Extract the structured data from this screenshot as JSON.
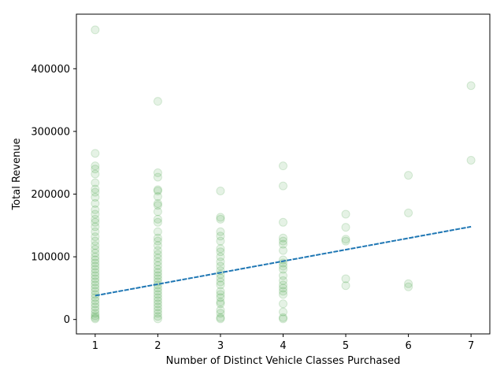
{
  "chart_data": {
    "type": "scatter",
    "title": "",
    "xlabel": "Number of Distinct Vehicle Classes Purchased",
    "ylabel": "Total Revenue",
    "xlim": [
      0.7,
      7.3
    ],
    "ylim": [
      -23000,
      487000
    ],
    "xticks": [
      1,
      2,
      3,
      4,
      5,
      6,
      7
    ],
    "yticks": [
      0,
      100000,
      200000,
      300000,
      400000
    ],
    "grid": false,
    "point_color": "#008000",
    "point_opacity": 0.1,
    "line_color": "#1f77b4",
    "trendline": {
      "x": [
        1,
        7
      ],
      "y": [
        38000,
        148000
      ]
    },
    "series": [
      {
        "points": [
          [
            1,
            462000
          ],
          [
            1,
            265000
          ],
          [
            1,
            245000
          ],
          [
            1,
            240000
          ],
          [
            1,
            232000
          ],
          [
            1,
            218000
          ],
          [
            1,
            208000
          ],
          [
            1,
            203000
          ],
          [
            1,
            195000
          ],
          [
            1,
            185000
          ],
          [
            1,
            175000
          ],
          [
            1,
            168000
          ],
          [
            1,
            160000
          ],
          [
            1,
            155000
          ],
          [
            1,
            148000
          ],
          [
            1,
            140000
          ],
          [
            1,
            132000
          ],
          [
            1,
            125000
          ],
          [
            1,
            118000
          ],
          [
            1,
            112000
          ],
          [
            1,
            106000
          ],
          [
            1,
            100000
          ],
          [
            1,
            95000
          ],
          [
            1,
            90000
          ],
          [
            1,
            85000
          ],
          [
            1,
            80000
          ],
          [
            1,
            75000
          ],
          [
            1,
            70000
          ],
          [
            1,
            65000
          ],
          [
            1,
            60000
          ],
          [
            1,
            55000
          ],
          [
            1,
            50000
          ],
          [
            1,
            45000
          ],
          [
            1,
            40000
          ],
          [
            1,
            35000
          ],
          [
            1,
            30000
          ],
          [
            1,
            25000
          ],
          [
            1,
            20000
          ],
          [
            1,
            15000
          ],
          [
            1,
            10000
          ],
          [
            1,
            6000
          ],
          [
            1,
            3000
          ],
          [
            1,
            1000
          ],
          [
            2,
            348000
          ],
          [
            2,
            234000
          ],
          [
            2,
            227000
          ],
          [
            2,
            207000
          ],
          [
            2,
            205000
          ],
          [
            2,
            196000
          ],
          [
            2,
            185000
          ],
          [
            2,
            182000
          ],
          [
            2,
            172000
          ],
          [
            2,
            160000
          ],
          [
            2,
            155000
          ],
          [
            2,
            140000
          ],
          [
            2,
            130000
          ],
          [
            2,
            125000
          ],
          [
            2,
            118000
          ],
          [
            2,
            110000
          ],
          [
            2,
            104000
          ],
          [
            2,
            98000
          ],
          [
            2,
            92000
          ],
          [
            2,
            86000
          ],
          [
            2,
            80000
          ],
          [
            2,
            75000
          ],
          [
            2,
            70000
          ],
          [
            2,
            65000
          ],
          [
            2,
            60000
          ],
          [
            2,
            55000
          ],
          [
            2,
            50000
          ],
          [
            2,
            45000
          ],
          [
            2,
            40000
          ],
          [
            2,
            35000
          ],
          [
            2,
            30000
          ],
          [
            2,
            25000
          ],
          [
            2,
            20000
          ],
          [
            2,
            15000
          ],
          [
            2,
            10000
          ],
          [
            2,
            5000
          ],
          [
            2,
            1000
          ],
          [
            3,
            205000
          ],
          [
            3,
            163000
          ],
          [
            3,
            160000
          ],
          [
            3,
            140000
          ],
          [
            3,
            133000
          ],
          [
            3,
            125000
          ],
          [
            3,
            113000
          ],
          [
            3,
            108000
          ],
          [
            3,
            100000
          ],
          [
            3,
            92000
          ],
          [
            3,
            85000
          ],
          [
            3,
            78000
          ],
          [
            3,
            72000
          ],
          [
            3,
            66000
          ],
          [
            3,
            60000
          ],
          [
            3,
            55000
          ],
          [
            3,
            45000
          ],
          [
            3,
            40000
          ],
          [
            3,
            35000
          ],
          [
            3,
            28000
          ],
          [
            3,
            25000
          ],
          [
            3,
            15000
          ],
          [
            3,
            10000
          ],
          [
            3,
            3000
          ],
          [
            3,
            1000
          ],
          [
            4,
            245000
          ],
          [
            4,
            213000
          ],
          [
            4,
            155000
          ],
          [
            4,
            130000
          ],
          [
            4,
            125000
          ],
          [
            4,
            120000
          ],
          [
            4,
            110000
          ],
          [
            4,
            95000
          ],
          [
            4,
            90000
          ],
          [
            4,
            85000
          ],
          [
            4,
            80000
          ],
          [
            4,
            70000
          ],
          [
            4,
            62000
          ],
          [
            4,
            55000
          ],
          [
            4,
            50000
          ],
          [
            4,
            45000
          ],
          [
            4,
            40000
          ],
          [
            4,
            25000
          ],
          [
            4,
            12000
          ],
          [
            4,
            3000
          ],
          [
            4,
            1000
          ],
          [
            5,
            168000
          ],
          [
            5,
            147000
          ],
          [
            5,
            128000
          ],
          [
            5,
            125000
          ],
          [
            5,
            65000
          ],
          [
            5,
            54000
          ],
          [
            6,
            230000
          ],
          [
            6,
            170000
          ],
          [
            6,
            57000
          ],
          [
            6,
            52000
          ],
          [
            7,
            373000
          ],
          [
            7,
            254000
          ]
        ]
      }
    ]
  }
}
